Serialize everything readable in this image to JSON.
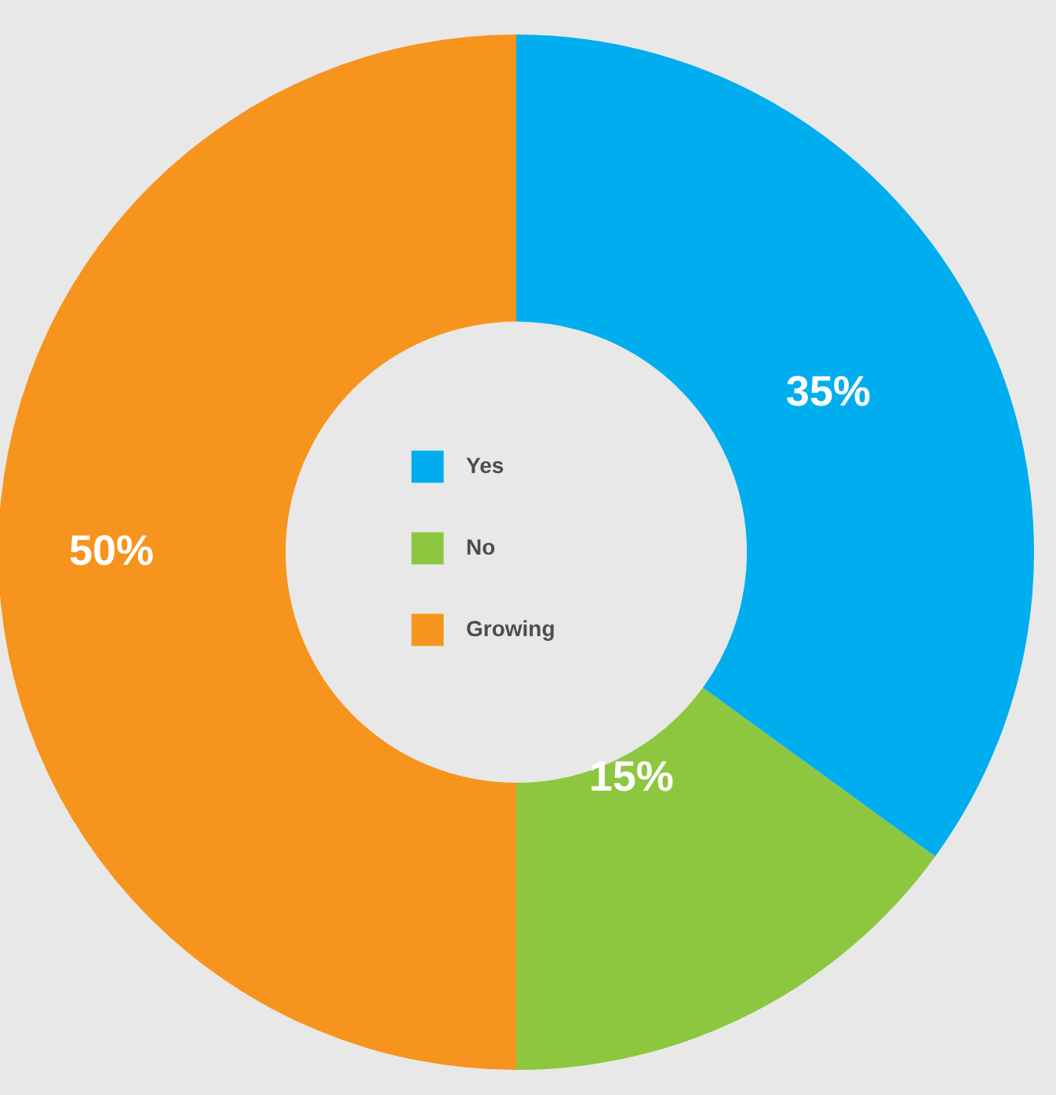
{
  "chart_data": {
    "type": "donut",
    "categories": [
      "Yes",
      "No",
      "Growing"
    ],
    "values": [
      35,
      15,
      50
    ],
    "colors": [
      "#00aeef",
      "#8dc63f",
      "#f7941d"
    ],
    "value_labels": [
      "35%",
      "15%",
      "50%"
    ],
    "legend": "center"
  }
}
